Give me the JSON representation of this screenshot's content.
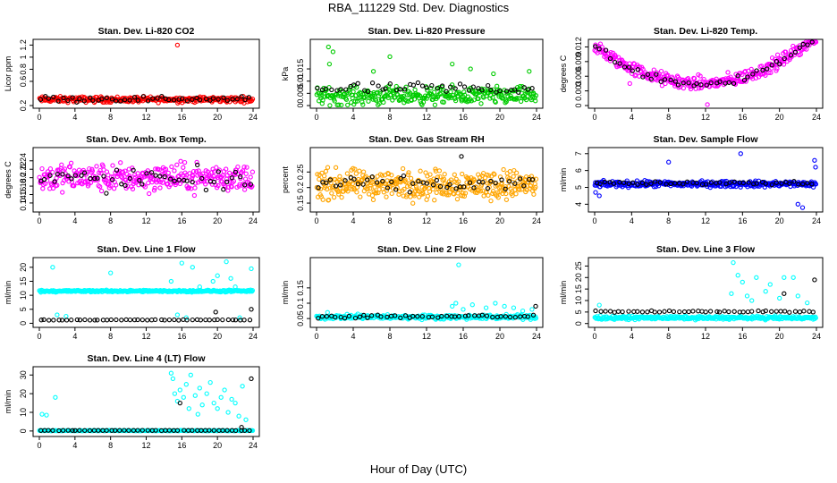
{
  "figure": {
    "title": "RBA_111229  Std. Dev. Diagnostics",
    "xlabel": "Hour of Day (UTC)"
  },
  "chart_data": [
    {
      "type": "scatter",
      "title": "Stan. Dev. Li-820 CO2",
      "ylabel": "Licor ppm",
      "xlim": [
        0,
        24
      ],
      "ylim": [
        0.2,
        1.25
      ],
      "xticks": [
        0,
        4,
        8,
        12,
        16,
        20,
        24
      ],
      "yticks": [
        0.2,
        0.6,
        0.8,
        1.0,
        1.2
      ],
      "series": [
        {
          "color": "#ff0000",
          "pattern": {
            "base": 0.3,
            "spread": 0.04,
            "count": 300
          },
          "extra": [
            [
              15.5,
              1.2
            ]
          ]
        },
        {
          "color": "#000000",
          "pattern": {
            "base": 0.31,
            "spread": 0.04,
            "count": 48
          }
        }
      ]
    },
    {
      "type": "scatter",
      "title": "Stan. Dev. Li-820 Pressure",
      "ylabel": "kPa",
      "xlim": [
        0,
        24
      ],
      "ylim": [
        0.0,
        0.026
      ],
      "xticks": [
        0,
        4,
        8,
        12,
        16,
        20,
        24
      ],
      "yticks": [
        0.0,
        0.005,
        0.01,
        0.015
      ],
      "series": [
        {
          "color": "#00cc00",
          "pattern": {
            "base": 0.004,
            "spread": 0.003,
            "count": 320
          },
          "extra": [
            [
              1.3,
              0.024
            ],
            [
              1.8,
              0.022
            ],
            [
              1.4,
              0.017
            ],
            [
              8.0,
              0.02
            ],
            [
              16.8,
              0.015
            ],
            [
              23.2,
              0.014
            ],
            [
              6.2,
              0.014
            ],
            [
              19.3,
              0.013
            ],
            [
              14.8,
              0.017
            ]
          ]
        },
        {
          "color": "#000000",
          "pattern": {
            "base": 0.007,
            "spread": 0.002,
            "count": 48
          }
        }
      ]
    },
    {
      "type": "scatter",
      "title": "Stan. Dev. Li-820 Temp.",
      "ylabel": "degrees C",
      "xlim": [
        0,
        24
      ],
      "ylim": [
        0.0,
        0.013
      ],
      "xticks": [
        0,
        4,
        8,
        12,
        16,
        20,
        24
      ],
      "yticks": [
        0.0,
        0.003,
        0.006,
        0.009,
        0.012
      ],
      "series": [
        {
          "color": "#ff00ff",
          "pattern": {
            "curve": "bowl",
            "spread": 0.0012,
            "count": 330
          },
          "extra": [
            [
              12.2,
              0.0002
            ],
            [
              3.8,
              0.0045
            ]
          ]
        },
        {
          "color": "#000000",
          "pattern": {
            "curve": "bowl",
            "spread": 0.0008,
            "count": 48
          }
        }
      ]
    },
    {
      "type": "scatter",
      "title": "Stan. Dev. Amb. Box Temp.",
      "ylabel": "degrees C",
      "xlim": [
        0,
        24
      ],
      "ylim": [
        0.125,
        0.265
      ],
      "xticks": [
        0,
        4,
        8,
        12,
        16,
        20,
        24
      ],
      "yticks": [
        0.14,
        0.16,
        0.18,
        0.2,
        0.22,
        0.24
      ],
      "series": [
        {
          "color": "#ff00ff",
          "pattern": {
            "base": 0.2,
            "spread": 0.028,
            "count": 330
          }
        },
        {
          "color": "#000000",
          "pattern": {
            "base": 0.195,
            "spread": 0.025,
            "count": 48
          }
        }
      ]
    },
    {
      "type": "scatter",
      "title": "Stan. Dev. Gas Stream RH",
      "ylabel": "percent",
      "xlim": [
        0,
        24
      ],
      "ylim": [
        0.13,
        0.32
      ],
      "xticks": [
        0,
        4,
        8,
        12,
        16,
        20,
        24
      ],
      "yticks": [
        0.15,
        0.2,
        0.25
      ],
      "series": [
        {
          "color": "#ffa500",
          "pattern": {
            "base": 0.21,
            "spread": 0.04,
            "count": 380
          }
        },
        {
          "color": "#000000",
          "pattern": {
            "base": 0.21,
            "spread": 0.02,
            "count": 48
          },
          "extra": [
            [
              15.8,
              0.3
            ]
          ]
        }
      ]
    },
    {
      "type": "scatter",
      "title": "Stan. Dev. Sample Flow",
      "ylabel": "ml/min",
      "xlim": [
        0,
        24
      ],
      "ylim": [
        3.7,
        7.2
      ],
      "xticks": [
        0,
        4,
        8,
        12,
        16,
        20,
        24
      ],
      "yticks": [
        4.0,
        5.0,
        6.0,
        7.0
      ],
      "series": [
        {
          "color": "#0000ff",
          "pattern": {
            "base": 5.2,
            "spread": 0.15,
            "count": 330
          },
          "extra": [
            [
              8.0,
              6.5
            ],
            [
              15.8,
              7.0
            ],
            [
              0.5,
              4.5
            ],
            [
              22.5,
              3.8
            ],
            [
              22.0,
              4.0
            ],
            [
              23.8,
              6.6
            ],
            [
              23.9,
              6.2
            ],
            [
              0.1,
              4.7
            ]
          ]
        },
        {
          "color": "#000000",
          "pattern": {
            "base": 5.25,
            "spread": 0.1,
            "count": 48
          }
        }
      ]
    },
    {
      "type": "scatter",
      "title": "Stan. Dev. Line 1 Flow",
      "ylabel": "ml/min",
      "xlim": [
        0,
        24
      ],
      "ylim": [
        -0.5,
        22.5
      ],
      "xticks": [
        0,
        4,
        8,
        12,
        16,
        20,
        24
      ],
      "yticks": [
        0,
        5,
        10,
        15,
        20
      ],
      "series": [
        {
          "color": "#00ffff",
          "pattern": {
            "base": 11.5,
            "spread": 0.3,
            "count": 320
          },
          "extra": [
            [
              1.5,
              20
            ],
            [
              8.0,
              18
            ],
            [
              16.0,
              21.5
            ],
            [
              17.2,
              20
            ],
            [
              19.5,
              15
            ],
            [
              20.0,
              17
            ],
            [
              21.0,
              22
            ],
            [
              21.5,
              16
            ],
            [
              22.0,
              13
            ],
            [
              23.8,
              19.5
            ],
            [
              14.8,
              15
            ],
            [
              18.0,
              13
            ],
            [
              2.0,
              3
            ],
            [
              3.0,
              2.5
            ],
            [
              15.5,
              3
            ],
            [
              16.5,
              2
            ],
            [
              22.5,
              2
            ]
          ]
        },
        {
          "color": "#000000",
          "pattern": {
            "base": 1.2,
            "spread": 0.1,
            "count": 48
          },
          "extra": [
            [
              19.8,
              4
            ],
            [
              23.8,
              5
            ]
          ]
        }
      ]
    },
    {
      "type": "scatter",
      "title": "Stan. Dev. Line 2 Flow",
      "ylabel": "ml/min",
      "xlim": [
        0,
        24
      ],
      "ylim": [
        0.03,
        0.24
      ],
      "xticks": [
        0,
        4,
        8,
        12,
        16,
        20,
        24
      ],
      "yticks": [
        0.05,
        0.1,
        0.15
      ],
      "series": [
        {
          "color": "#00ffff",
          "pattern": {
            "base": 0.055,
            "spread": 0.006,
            "count": 320
          },
          "extra": [
            [
              15.5,
              0.225
            ],
            [
              14.8,
              0.09
            ],
            [
              15.2,
              0.1
            ],
            [
              16.0,
              0.08
            ],
            [
              17.0,
              0.095
            ],
            [
              18.5,
              0.085
            ],
            [
              19.5,
              0.1
            ],
            [
              20.5,
              0.09
            ],
            [
              21.5,
              0.085
            ],
            [
              22.5,
              0.075
            ],
            [
              23.5,
              0.08
            ],
            [
              1.2,
              0.07
            ],
            [
              4.5,
              0.065
            ]
          ]
        },
        {
          "color": "#000000",
          "pattern": {
            "base": 0.057,
            "spread": 0.006,
            "count": 48
          },
          "extra": [
            [
              23.9,
              0.09
            ]
          ]
        }
      ]
    },
    {
      "type": "scatter",
      "title": "Stan. Dev. Line 3 Flow",
      "ylabel": "ml/min",
      "xlim": [
        0,
        24
      ],
      "ylim": [
        -0.5,
        27.5
      ],
      "xticks": [
        0,
        4,
        8,
        12,
        16,
        20,
        24
      ],
      "yticks": [
        0,
        5,
        10,
        15,
        20,
        25
      ],
      "series": [
        {
          "color": "#00ffff",
          "pattern": {
            "base": 2.5,
            "spread": 0.6,
            "count": 320
          },
          "extra": [
            [
              15.0,
              26.5
            ],
            [
              15.5,
              21
            ],
            [
              16.0,
              18
            ],
            [
              14.8,
              13
            ],
            [
              16.5,
              12
            ],
            [
              17.5,
              20
            ],
            [
              18.5,
              14
            ],
            [
              19.0,
              17
            ],
            [
              20.0,
              11
            ],
            [
              20.5,
              20
            ],
            [
              21.5,
              20
            ],
            [
              22.0,
              12
            ],
            [
              23.0,
              9
            ],
            [
              0.5,
              8
            ],
            [
              17.0,
              10
            ]
          ]
        },
        {
          "color": "#000000",
          "pattern": {
            "base": 5.2,
            "spread": 0.3,
            "count": 48
          },
          "extra": [
            [
              20.5,
              13
            ],
            [
              23.8,
              19
            ]
          ]
        }
      ]
    },
    {
      "type": "scatter",
      "title": "Stan. Dev. Line 4 (LT) Flow",
      "ylabel": "ml/min",
      "xlim": [
        0,
        24
      ],
      "ylim": [
        -1.5,
        33
      ],
      "xticks": [
        0,
        4,
        8,
        12,
        16,
        20,
        24
      ],
      "yticks": [
        0,
        10,
        20,
        30
      ],
      "series": [
        {
          "color": "#00ffff",
          "pattern": {
            "base": 0.2,
            "spread": 0.1,
            "count": 320
          },
          "extra": [
            [
              0.3,
              9
            ],
            [
              0.8,
              8.5
            ],
            [
              1.8,
              18
            ],
            [
              14.8,
              31
            ],
            [
              15.0,
              28
            ],
            [
              15.2,
              20
            ],
            [
              15.5,
              16
            ],
            [
              15.8,
              22
            ],
            [
              16.2,
              18
            ],
            [
              16.5,
              25
            ],
            [
              17.0,
              30
            ],
            [
              17.5,
              19
            ],
            [
              18.0,
              23
            ],
            [
              18.3,
              14
            ],
            [
              18.8,
              20
            ],
            [
              19.2,
              26
            ],
            [
              19.6,
              15
            ],
            [
              20.0,
              12
            ],
            [
              20.4,
              18
            ],
            [
              20.8,
              22
            ],
            [
              21.2,
              10
            ],
            [
              21.6,
              17
            ],
            [
              22.0,
              15
            ],
            [
              22.4,
              8
            ],
            [
              22.8,
              24
            ],
            [
              23.2,
              6
            ],
            [
              16.8,
              12
            ],
            [
              17.8,
              9
            ]
          ]
        },
        {
          "color": "#000000",
          "pattern": {
            "base": 0.3,
            "spread": 0.1,
            "count": 48
          },
          "extra": [
            [
              23.8,
              28
            ],
            [
              15.8,
              15
            ],
            [
              22.7,
              2
            ]
          ]
        }
      ]
    }
  ]
}
